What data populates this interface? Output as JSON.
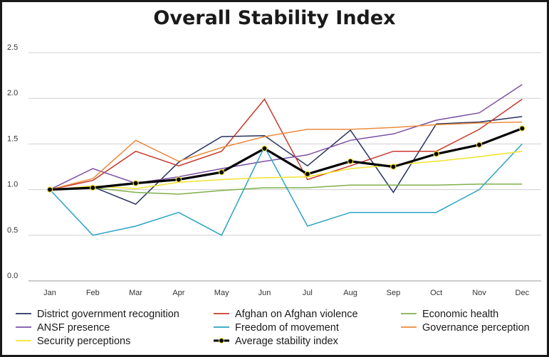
{
  "chart_data": {
    "type": "line",
    "title": "Overall Stability Index",
    "xlabel": "",
    "ylabel": "",
    "categories": [
      "Jan",
      "Feb",
      "Mar",
      "Apr",
      "May",
      "Jun",
      "Jul",
      "Aug",
      "Sep",
      "Oct",
      "Nov",
      "Dec"
    ],
    "ylim": [
      0,
      2.5
    ],
    "yticks": [
      "0.0",
      "0.5",
      "1.0",
      "1.5",
      "2.0",
      "2.5"
    ],
    "grid": true,
    "legend_position": "bottom",
    "series": [
      {
        "name": "District government recognition",
        "color": "#27315e",
        "values": [
          1.0,
          1.03,
          0.84,
          1.3,
          1.58,
          1.59,
          1.26,
          1.65,
          0.97,
          1.72,
          1.74,
          1.8
        ]
      },
      {
        "name": "Afghan on Afghan violence",
        "color": "#c8382b",
        "values": [
          1.0,
          1.1,
          1.42,
          1.26,
          1.42,
          1.99,
          1.11,
          1.26,
          1.42,
          1.42,
          1.66,
          1.99
        ]
      },
      {
        "name": "Economic health",
        "color": "#7fb04a",
        "values": [
          1.0,
          1.02,
          0.97,
          0.95,
          0.99,
          1.02,
          1.02,
          1.05,
          1.05,
          1.05,
          1.06,
          1.06
        ]
      },
      {
        "name": "ANSF presence",
        "color": "#7d4fa3",
        "values": [
          1.0,
          1.23,
          1.07,
          1.14,
          1.23,
          1.31,
          1.38,
          1.54,
          1.61,
          1.76,
          1.84,
          2.15
        ]
      },
      {
        "name": "Freedom of movement",
        "color": "#2ba3c4",
        "values": [
          1.0,
          0.5,
          0.6,
          0.75,
          0.5,
          1.47,
          0.6,
          0.75,
          0.75,
          0.75,
          1.0,
          1.5
        ]
      },
      {
        "name": "Governance perception",
        "color": "#ec8a3c",
        "values": [
          1.0,
          1.12,
          1.54,
          1.31,
          1.46,
          1.58,
          1.66,
          1.66,
          1.68,
          1.71,
          1.73,
          1.74
        ]
      },
      {
        "name": "Security perceptions",
        "color": "#f2e22c",
        "values": [
          1.0,
          1.04,
          1.01,
          1.08,
          1.11,
          1.13,
          1.14,
          1.23,
          1.27,
          1.31,
          1.36,
          1.42
        ]
      },
      {
        "name": "Average stability index",
        "color": "#000000",
        "marker": "circle",
        "values": [
          1.0,
          1.02,
          1.07,
          1.11,
          1.19,
          1.45,
          1.17,
          1.31,
          1.25,
          1.39,
          1.49,
          1.67
        ]
      }
    ]
  }
}
